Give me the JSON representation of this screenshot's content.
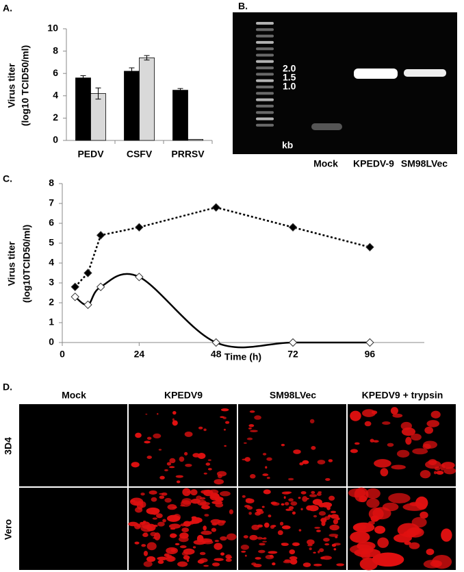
{
  "chart_data": [
    {
      "type": "bar",
      "panel_label": "A.",
      "ylabel": [
        "Virus titer",
        "(log10 TCID50/ml)"
      ],
      "categories": [
        "PEDV",
        "CSFV",
        "PRRSV"
      ],
      "series": [
        {
          "color": "#000000",
          "values": [
            5.6,
            6.2,
            4.5
          ],
          "errors": [
            0.2,
            0.3,
            0.15
          ]
        },
        {
          "color": "#d9d9d9",
          "values": [
            4.2,
            7.4,
            0.1
          ],
          "errors": [
            0.5,
            0.2,
            0
          ]
        }
      ],
      "ylim": [
        0,
        10
      ],
      "yticks": [
        0,
        2,
        4,
        6,
        8,
        10
      ]
    },
    {
      "type": "line",
      "panel_label": "C.",
      "ylabel": [
        "Virus titer",
        "(log10TCID50/ml)"
      ],
      "xlabel": "Time (h)",
      "x": [
        4,
        8,
        12,
        24,
        48,
        72,
        96
      ],
      "series": [
        {
          "color": "#000000",
          "marker_fill": "#000000",
          "line_style": "dotted",
          "smooth": false,
          "values": [
            2.8,
            3.5,
            5.4,
            5.8,
            6.8,
            5.8,
            4.8
          ]
        },
        {
          "color": "#000000",
          "marker_fill": "#ffffff",
          "line_style": "solid",
          "smooth": true,
          "values": [
            2.3,
            1.9,
            2.8,
            3.3,
            0,
            0,
            0
          ]
        }
      ],
      "xlim": [
        0,
        113
      ],
      "xticks": [
        0,
        24,
        48,
        72,
        96
      ],
      "ylim": [
        0,
        8
      ],
      "yticks": [
        0,
        1,
        2,
        3,
        4,
        5,
        6,
        7,
        8
      ]
    }
  ],
  "gel": {
    "panel_label": "B.",
    "markers": [
      "2.0",
      "1.5",
      "1.0"
    ],
    "unit": "kb",
    "lanes": [
      "Mock",
      "KPEDV-9",
      "SM98LVec"
    ]
  },
  "micrographs": {
    "panel_label": "D.",
    "columns": [
      "Mock",
      "KPEDV9",
      "SM98LVec",
      "KPEDV9 + trypsin"
    ],
    "rows": [
      "3D4",
      "Vero"
    ]
  }
}
